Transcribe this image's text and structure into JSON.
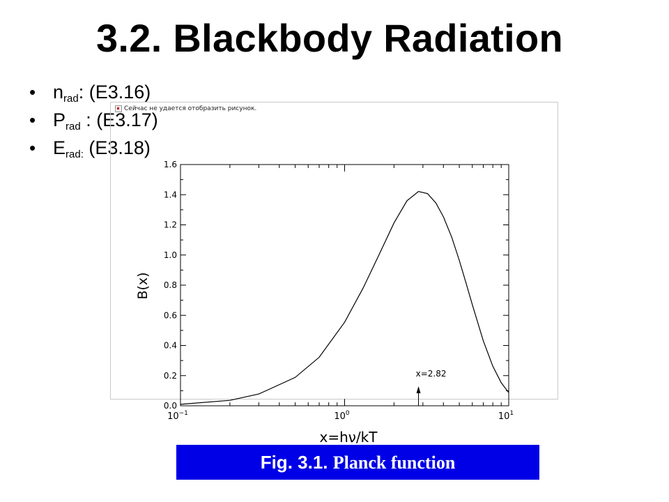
{
  "slide": {
    "title": "3.2. Blackbody Radiation",
    "bullets": [
      {
        "main": "n",
        "sub": "rad",
        "rest": ": (E3.16)"
      },
      {
        "main": "P",
        "sub": "rad",
        "rest": " : (E3.17)"
      },
      {
        "main": "E",
        "sub": "rad:",
        "rest": " (E3.18)"
      }
    ],
    "broken_image_text": "Сейчас не удается отобразить рисунок.",
    "caption": {
      "label": "Fig. 3.1.",
      "text": "Planck function"
    }
  },
  "chart_data": {
    "type": "line",
    "xlabel": "x=hν/kT",
    "ylabel": "B(x)",
    "xscale": "log",
    "xlim": [
      0.1,
      10
    ],
    "ylim": [
      0,
      1.6
    ],
    "xticks": [
      {
        "base": "10",
        "exp": "−1"
      },
      {
        "base": "10",
        "exp": "0"
      },
      {
        "base": "10",
        "exp": "1"
      }
    ],
    "yticks": [
      "0.0",
      "0.2",
      "0.4",
      "0.6",
      "0.8",
      "1.0",
      "1.2",
      "1.4",
      "1.6"
    ],
    "grid": false,
    "series": [
      {
        "x": [
          0.1,
          0.2,
          0.3,
          0.5,
          0.7,
          1.0,
          1.3,
          1.6,
          2.0,
          2.4,
          2.82,
          3.2,
          3.6,
          4.0,
          4.5,
          5.0,
          5.5,
          6.0,
          7.0,
          8.0,
          9.0,
          10.0
        ],
        "y": [
          0.0095,
          0.036,
          0.078,
          0.188,
          0.322,
          0.554,
          0.783,
          0.989,
          1.213,
          1.36,
          1.421,
          1.407,
          1.345,
          1.253,
          1.117,
          0.964,
          0.812,
          0.67,
          0.431,
          0.262,
          0.153,
          0.087
        ]
      }
    ],
    "annotation": {
      "text": "x=2.82",
      "x": 2.82
    }
  }
}
